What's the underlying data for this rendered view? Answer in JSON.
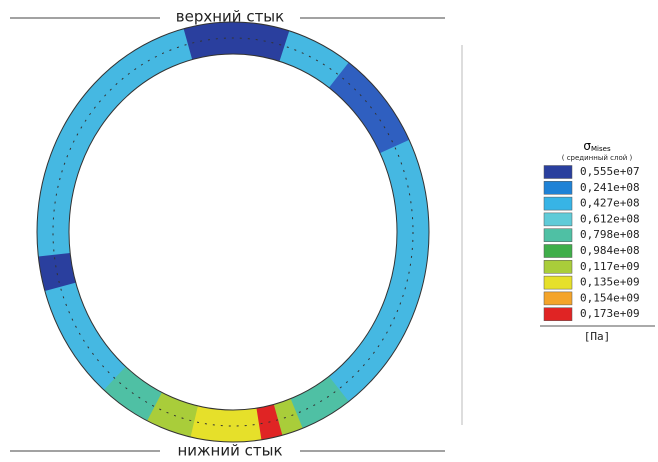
{
  "header": {
    "top_label": "верхний стык",
    "bottom_label": "нижний стык"
  },
  "legend": {
    "title": "σ",
    "title_subscript": "Mises",
    "subtitle": "( срединный слой )",
    "entries": [
      {
        "color": "#2a3f9e",
        "label": "0,555e+07"
      },
      {
        "color": "#1f82d6",
        "label": "0,241e+08"
      },
      {
        "color": "#37b4e6",
        "label": "0,427e+08"
      },
      {
        "color": "#5fcbd8",
        "label": "0,612e+08"
      },
      {
        "color": "#4fc0a4",
        "label": "0,798e+08"
      },
      {
        "color": "#3fae4a",
        "label": "0,984e+08"
      },
      {
        "color": "#a9cd3a",
        "label": "0,117e+09"
      },
      {
        "color": "#e6e02a",
        "label": "0,135e+09"
      },
      {
        "color": "#f4a42a",
        "label": "0,154e+09"
      },
      {
        "color": "#e02424",
        "label": "0,173e+09"
      }
    ],
    "unit": "[Па]"
  }
}
